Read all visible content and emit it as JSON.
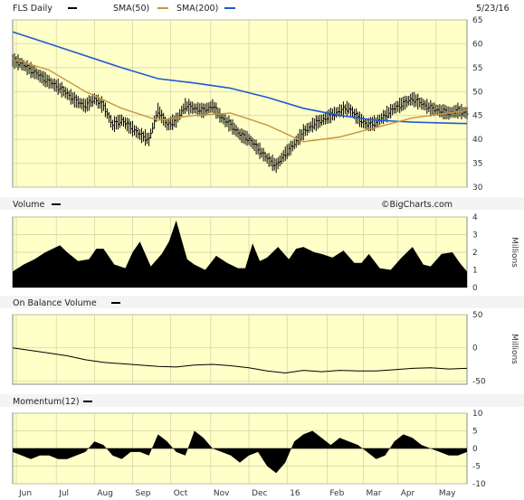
{
  "header": {
    "ticker_label": "FLS Daily",
    "sma50_label": "SMA(50)",
    "sma200_label": "SMA(200)",
    "date": "5/23/16"
  },
  "credit": "©BigCharts.com",
  "colors": {
    "background": "#ffffc8",
    "grid": "#cfcfa6",
    "price": "#000000",
    "sma50": "#c8963c",
    "sma200": "#1e5ad2",
    "volume": "#000000"
  },
  "chart_data": [
    {
      "type": "ohlc",
      "title": "FLS Daily",
      "ylim": [
        30,
        65
      ],
      "y_ticks": [
        30,
        35,
        40,
        45,
        50,
        55,
        60,
        65
      ],
      "x_months": [
        "Jun",
        "Jul",
        "Aug",
        "Sep",
        "Oct",
        "Nov",
        "Dec",
        "16",
        "Feb",
        "Mar",
        "Apr",
        "May"
      ],
      "series": [
        {
          "name": "FLS Daily",
          "kind": "price",
          "x": [
            0,
            4,
            8,
            12,
            16,
            20,
            25,
            30,
            35,
            40,
            45,
            50,
            55,
            60,
            65,
            70,
            75,
            80,
            85,
            90,
            95,
            100,
            105,
            110,
            115,
            120,
            125,
            130,
            135,
            140,
            145,
            150,
            155,
            160,
            165,
            170,
            175,
            180,
            185,
            190,
            195,
            200,
            205,
            210,
            215,
            220,
            225,
            230,
            235,
            240,
            245,
            250
          ],
          "y": [
            56.5,
            56.0,
            55.0,
            54.0,
            53.0,
            52.0,
            51.0,
            49.5,
            48.0,
            47.0,
            48.5,
            47.0,
            43.0,
            44.0,
            42.5,
            41.0,
            40.0,
            46.0,
            43.0,
            44.0,
            47.0,
            46.5,
            46.0,
            47.0,
            44.5,
            43.0,
            41.0,
            40.0,
            38.0,
            36.0,
            34.5,
            37.0,
            39.0,
            41.5,
            43.0,
            44.0,
            45.0,
            46.0,
            46.5,
            44.5,
            43.0,
            43.5,
            45.0,
            46.5,
            47.5,
            48.5,
            47.5,
            46.5,
            46.0,
            45.5,
            46.0,
            45.5
          ]
        },
        {
          "name": "SMA(50)",
          "kind": "sma",
          "x": [
            0,
            20,
            40,
            60,
            80,
            100,
            120,
            140,
            160,
            180,
            200,
            220,
            250
          ],
          "y": [
            56.8,
            54.5,
            50.0,
            46.5,
            44.0,
            45.0,
            45.5,
            43.0,
            39.5,
            40.5,
            42.5,
            44.5,
            46.0
          ]
        },
        {
          "name": "SMA(200)",
          "kind": "sma",
          "x": [
            0,
            20,
            40,
            60,
            80,
            100,
            120,
            140,
            160,
            180,
            200,
            220,
            250
          ],
          "y": [
            62.5,
            60.0,
            57.5,
            55.0,
            52.7,
            51.8,
            50.7,
            48.8,
            46.5,
            45.0,
            44.0,
            43.6,
            43.3
          ]
        }
      ]
    },
    {
      "type": "area",
      "title": "Volume",
      "unit": "Millions",
      "ylim": [
        0,
        4
      ],
      "y_ticks": [
        0,
        1,
        2,
        3,
        4
      ],
      "series": [
        {
          "name": "Volume",
          "x": [
            0,
            6,
            12,
            18,
            22,
            26,
            30,
            36,
            42,
            46,
            50,
            56,
            62,
            66,
            70,
            76,
            82,
            86,
            90,
            96,
            100,
            106,
            112,
            118,
            124,
            128,
            132,
            136,
            140,
            146,
            152,
            156,
            160,
            166,
            170,
            176,
            182,
            188,
            192,
            196,
            202,
            208,
            214,
            220,
            226,
            230,
            236,
            242,
            246,
            250
          ],
          "y": [
            0.9,
            1.3,
            1.6,
            2.0,
            2.2,
            2.4,
            2.0,
            1.5,
            1.6,
            2.2,
            2.2,
            1.3,
            1.1,
            2.0,
            2.6,
            1.2,
            1.9,
            2.6,
            3.8,
            1.6,
            1.3,
            1.0,
            1.8,
            1.4,
            1.1,
            1.1,
            2.5,
            1.5,
            1.7,
            2.3,
            1.6,
            2.2,
            2.3,
            2.0,
            1.9,
            1.7,
            2.1,
            1.4,
            1.4,
            1.9,
            1.1,
            1.0,
            1.7,
            2.3,
            1.3,
            1.2,
            1.9,
            2.0,
            1.4,
            0.9
          ]
        }
      ]
    },
    {
      "type": "line",
      "title": "On Balance Volume",
      "unit": "Millions",
      "ylim": [
        -55,
        50
      ],
      "y_ticks": [
        -50,
        0,
        50
      ],
      "series": [
        {
          "name": "On Balance Volume",
          "x": [
            0,
            10,
            20,
            30,
            40,
            50,
            60,
            70,
            80,
            90,
            100,
            110,
            120,
            130,
            140,
            150,
            160,
            170,
            180,
            190,
            200,
            210,
            220,
            230,
            240,
            250
          ],
          "y": [
            0,
            -4,
            -8,
            -12,
            -18,
            -22,
            -24,
            -26,
            -28,
            -29,
            -26,
            -25,
            -27,
            -30,
            -35,
            -38,
            -34,
            -36,
            -34,
            -35,
            -35,
            -33,
            -31,
            -30,
            -32,
            -31
          ]
        }
      ]
    },
    {
      "type": "area",
      "title": "Momentum(12)",
      "ylim": [
        -10,
        10
      ],
      "y_ticks": [
        -10,
        -5,
        0,
        5,
        10
      ],
      "series": [
        {
          "name": "Momentum(12)",
          "x": [
            0,
            5,
            10,
            15,
            20,
            25,
            30,
            35,
            40,
            45,
            50,
            55,
            60,
            65,
            70,
            75,
            80,
            85,
            90,
            95,
            100,
            105,
            110,
            115,
            120,
            125,
            130,
            135,
            140,
            145,
            150,
            155,
            160,
            165,
            170,
            175,
            180,
            185,
            190,
            195,
            200,
            205,
            210,
            215,
            220,
            225,
            230,
            235,
            240,
            245,
            250
          ],
          "y": [
            -1,
            -2,
            -3,
            -2,
            -2,
            -3,
            -3,
            -2,
            -1,
            2,
            1,
            -2,
            -3,
            -1,
            -1,
            -2,
            4,
            2,
            -1,
            -2,
            5,
            3,
            0,
            -1,
            -2,
            -4,
            -2,
            -1,
            -5,
            -7,
            -4,
            2,
            4,
            5,
            3,
            1,
            3,
            2,
            1,
            -1,
            -3,
            -2,
            2,
            4,
            3,
            1,
            0,
            -1,
            -2,
            -2,
            -1
          ]
        }
      ]
    }
  ]
}
